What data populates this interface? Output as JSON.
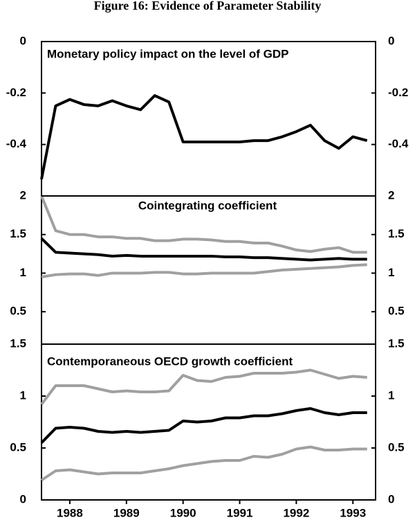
{
  "title": "Figure 16: Evidence of Parameter Stability",
  "chart_data": [
    {
      "type": "line",
      "title": "Monetary policy impact on the level of GDP",
      "x": [
        1987.5,
        1987.75,
        1988,
        1988.25,
        1988.5,
        1988.75,
        1989,
        1989.25,
        1989.5,
        1989.75,
        1990,
        1990.25,
        1990.5,
        1990.75,
        1991,
        1991.25,
        1991.5,
        1991.75,
        1992,
        1992.25,
        1992.5,
        1992.75,
        1993,
        1993.25
      ],
      "xlim": [
        1987.5,
        1993.4
      ],
      "ylim": [
        -0.6,
        0
      ],
      "yticks": [
        0,
        -0.2,
        -0.4
      ],
      "series": [
        {
          "color": "#000000",
          "values": [
            -0.535,
            -0.25,
            -0.225,
            -0.245,
            -0.25,
            -0.23,
            -0.25,
            -0.265,
            -0.21,
            -0.235,
            -0.39,
            -0.39,
            -0.39,
            -0.39,
            -0.39,
            -0.385,
            -0.385,
            -0.37,
            -0.35,
            -0.325,
            -0.385,
            -0.415,
            -0.37,
            -0.385
          ]
        }
      ]
    },
    {
      "type": "line",
      "title": "Cointegrating coefficient",
      "x": [
        1987.5,
        1987.75,
        1988,
        1988.25,
        1988.5,
        1988.75,
        1989,
        1989.25,
        1989.5,
        1989.75,
        1990,
        1990.25,
        1990.5,
        1990.75,
        1991,
        1991.25,
        1991.5,
        1991.75,
        1992,
        1992.25,
        1992.5,
        1992.75,
        1993,
        1993.25
      ],
      "xlim": [
        1987.5,
        1993.4
      ],
      "ylim": [
        0.08,
        2
      ],
      "yticks": [
        2,
        1.5,
        1,
        0.5
      ],
      "series": [
        {
          "color": "#a0a0a0",
          "values": [
            2.0,
            1.55,
            1.5,
            1.5,
            1.47,
            1.47,
            1.45,
            1.45,
            1.42,
            1.42,
            1.44,
            1.44,
            1.43,
            1.41,
            1.41,
            1.39,
            1.39,
            1.35,
            1.3,
            1.28,
            1.31,
            1.33,
            1.27,
            1.27
          ]
        },
        {
          "color": "#000000",
          "values": [
            1.45,
            1.27,
            1.26,
            1.25,
            1.24,
            1.22,
            1.23,
            1.22,
            1.22,
            1.22,
            1.22,
            1.22,
            1.22,
            1.21,
            1.21,
            1.2,
            1.2,
            1.19,
            1.18,
            1.17,
            1.18,
            1.19,
            1.18,
            1.18
          ]
        },
        {
          "color": "#a0a0a0",
          "values": [
            0.95,
            0.98,
            0.99,
            0.99,
            0.97,
            1.0,
            1.0,
            1.0,
            1.01,
            1.01,
            0.99,
            0.99,
            1.0,
            1.0,
            1.0,
            1.0,
            1.02,
            1.04,
            1.05,
            1.06,
            1.07,
            1.08,
            1.1,
            1.11
          ]
        }
      ]
    },
    {
      "type": "line",
      "title": "Contemporaneous OECD growth coefficient",
      "x": [
        1987.5,
        1987.75,
        1988,
        1988.25,
        1988.5,
        1988.75,
        1989,
        1989.25,
        1989.5,
        1989.75,
        1990,
        1990.25,
        1990.5,
        1990.75,
        1991,
        1991.25,
        1991.5,
        1991.75,
        1992,
        1992.25,
        1992.5,
        1992.75,
        1993,
        1993.25
      ],
      "xlim": [
        1987.5,
        1993.4
      ],
      "xticks": [
        1988,
        1989,
        1990,
        1991,
        1992,
        1993
      ],
      "ylim": [
        0,
        1.5
      ],
      "yticks": [
        1.5,
        1,
        0.5,
        0
      ],
      "series": [
        {
          "color": "#a0a0a0",
          "values": [
            0.92,
            1.1,
            1.1,
            1.1,
            1.07,
            1.04,
            1.05,
            1.04,
            1.04,
            1.05,
            1.2,
            1.15,
            1.14,
            1.18,
            1.19,
            1.22,
            1.22,
            1.22,
            1.23,
            1.25,
            1.21,
            1.17,
            1.19,
            1.18
          ]
        },
        {
          "color": "#000000",
          "values": [
            0.55,
            0.69,
            0.7,
            0.69,
            0.66,
            0.65,
            0.66,
            0.65,
            0.66,
            0.67,
            0.76,
            0.75,
            0.76,
            0.79,
            0.79,
            0.81,
            0.81,
            0.83,
            0.86,
            0.88,
            0.84,
            0.82,
            0.84,
            0.84
          ]
        },
        {
          "color": "#a0a0a0",
          "values": [
            0.19,
            0.28,
            0.29,
            0.27,
            0.25,
            0.26,
            0.26,
            0.26,
            0.28,
            0.3,
            0.33,
            0.35,
            0.37,
            0.38,
            0.38,
            0.42,
            0.41,
            0.44,
            0.49,
            0.51,
            0.48,
            0.48,
            0.49,
            0.49
          ]
        }
      ]
    }
  ]
}
